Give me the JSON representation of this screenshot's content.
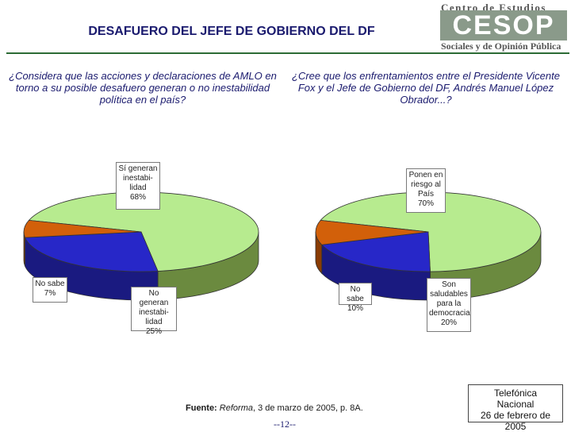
{
  "title": "DESAFUERO DEL JEFE DE GOBIERNO DEL DF",
  "logo": {
    "top": "Centro de Estudios",
    "mid": "CESOP",
    "bot": "Sociales y de Opinión Pública"
  },
  "source": {
    "prefix": "Fuente:",
    "publication": "Reforma",
    "rest": ", 3 de marzo de 2005, p. 8A."
  },
  "page_number": "--12--",
  "method": {
    "line1": "Telefónica",
    "line2": "Nacional",
    "line3": "26 de febrero de 2005"
  },
  "colors": {
    "green": "#b7eb8f",
    "green_side": "#6b8a3f",
    "blue": "#2727c8",
    "blue_side": "#1a1a80",
    "orange": "#d2600a",
    "orange_side": "#8a3c04"
  },
  "chart_data": [
    {
      "type": "pie",
      "question": "¿Considera que las acciones y declaraciones de AMLO en torno a su posible desafuero generan o no inestabilidad política en el país?",
      "slices": [
        {
          "label": "Sí generan inestabi-lidad",
          "value": 68,
          "display": "68%",
          "color": "#b7eb8f"
        },
        {
          "label": "No generan inestabi-lidad",
          "value": 25,
          "display": "25%",
          "color": "#2727c8"
        },
        {
          "label": "No sabe",
          "value": 7,
          "display": "7%",
          "color": "#d2600a"
        }
      ]
    },
    {
      "type": "pie",
      "question": "¿Cree que los enfrentamientos entre el Presidente Vicente Fox y el Jefe de Gobierno del DF, Andrés Manuel López Obrador...?",
      "slices": [
        {
          "label": "Ponen en riesgo al País",
          "value": 70,
          "display": "70%",
          "color": "#b7eb8f"
        },
        {
          "label": "Son saludables para la democracia",
          "value": 20,
          "display": "20%",
          "color": "#2727c8"
        },
        {
          "label": "No sabe",
          "value": 10,
          "display": "10%",
          "color": "#d2600a"
        }
      ]
    }
  ]
}
